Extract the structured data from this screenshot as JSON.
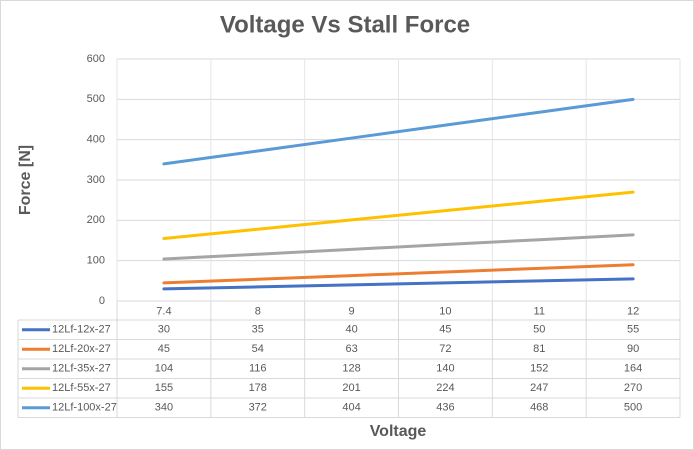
{
  "chart_data": {
    "type": "line",
    "title": "Voltage Vs Stall Force",
    "x_label": "Voltage",
    "y_label": "Force [N]",
    "categories": [
      "7.4",
      "8",
      "9",
      "10",
      "11",
      "12"
    ],
    "series": [
      {
        "name": "12Lf-12x-27",
        "color": "#4472c4",
        "values": [
          30,
          35,
          40,
          45,
          50,
          55
        ]
      },
      {
        "name": "12Lf-20x-27",
        "color": "#ed7d31",
        "values": [
          45,
          54,
          63,
          72,
          81,
          90
        ]
      },
      {
        "name": "12Lf-35x-27",
        "color": "#a5a5a5",
        "values": [
          104,
          116,
          128,
          140,
          152,
          164
        ]
      },
      {
        "name": "12Lf-55x-27",
        "color": "#ffc000",
        "values": [
          155,
          178,
          201,
          224,
          247,
          270
        ]
      },
      {
        "name": "12Lf-100x-27",
        "color": "#5b9bd5",
        "values": [
          340,
          372,
          404,
          436,
          468,
          500
        ]
      }
    ],
    "ylim": [
      0,
      600
    ],
    "yticks": [
      0,
      100,
      200,
      300,
      400,
      500,
      600
    ],
    "grid": true,
    "data_table": true
  }
}
